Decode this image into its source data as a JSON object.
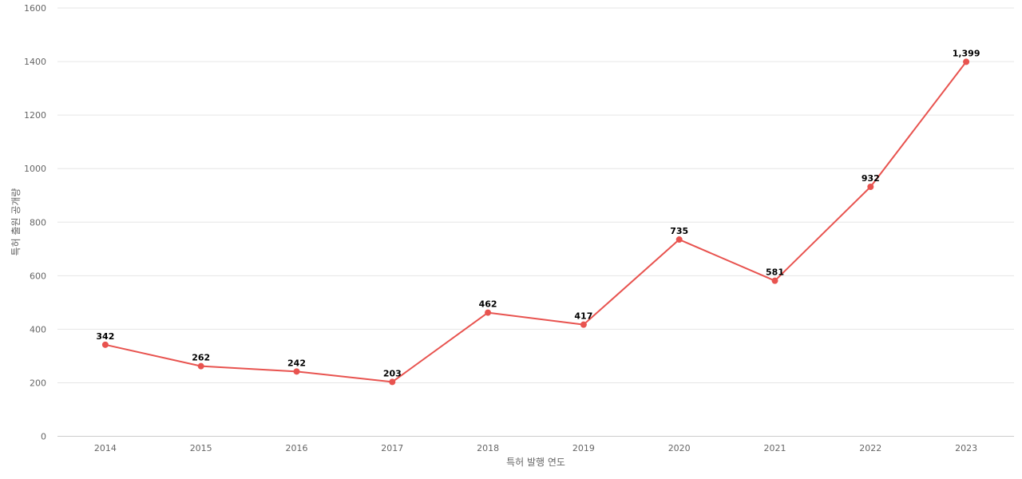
{
  "chart_data": {
    "type": "line",
    "categories": [
      "2014",
      "2015",
      "2016",
      "2017",
      "2018",
      "2019",
      "2020",
      "2021",
      "2022",
      "2023"
    ],
    "series": [
      {
        "values": [
          342,
          262,
          242,
          203,
          462,
          417,
          735,
          581,
          932,
          1399
        ],
        "data_labels": [
          "342",
          "262",
          "242",
          "203",
          "462",
          "417",
          "735",
          "581",
          "932",
          "1,399"
        ],
        "color": "#e8534f"
      }
    ],
    "xlabel": "특허 발행 연도",
    "ylabel": "특허 출원 공개량",
    "ylim": [
      0,
      1600
    ],
    "yticks": [
      0,
      200,
      400,
      600,
      800,
      1000,
      1200,
      1400,
      1600
    ],
    "grid": true
  }
}
